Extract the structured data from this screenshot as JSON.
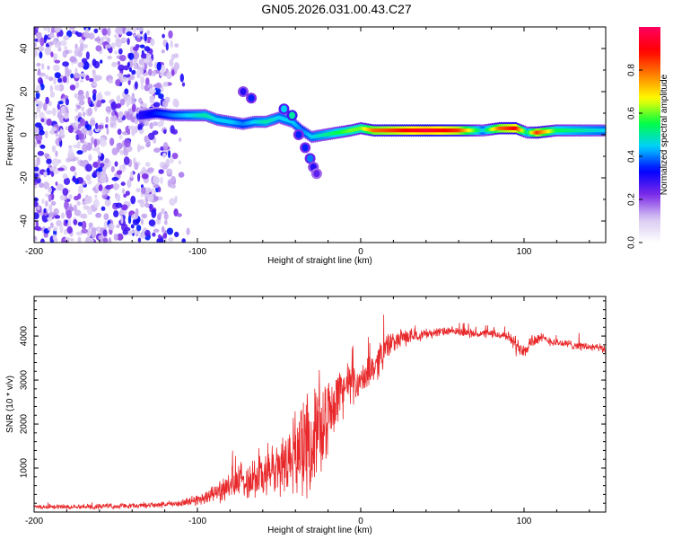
{
  "title": "GN05.2026.031.00.43.C27",
  "chart_data": [
    {
      "type": "heatmap",
      "name": "spectrogram",
      "xlabel": "Height of straight line (km)",
      "ylabel": "Frequency (Hz)",
      "xlim": [
        -200,
        150
      ],
      "ylim": [
        -50,
        50
      ],
      "xticks": [
        -200,
        -100,
        0,
        100
      ],
      "yticks": [
        -40,
        -20,
        0,
        20,
        40
      ],
      "colorbar": {
        "label": "Normalized spectral amplitude",
        "range": [
          0,
          1
        ],
        "ticks": [
          0.0,
          0.2,
          0.4,
          0.6,
          0.8
        ],
        "tick_labels": [
          "0.0",
          "0.2",
          "0.4",
          "0.6",
          "0.8"
        ],
        "colors": [
          "#ffffff",
          "#d8c8f2",
          "#7c2ae8",
          "#0000ff",
          "#00d0ff",
          "#00ff40",
          "#ffff00",
          "#ff8000",
          "#ff0000",
          "#ff0060"
        ]
      },
      "noise_region": {
        "x": [
          -200,
          -105
        ],
        "y": [
          -50,
          50
        ],
        "amplitude": 0.2
      },
      "trace": [
        {
          "x": -135,
          "y": 9,
          "a": 0.3
        },
        {
          "x": -125,
          "y": 10,
          "a": 0.35
        },
        {
          "x": -115,
          "y": 9,
          "a": 0.4
        },
        {
          "x": -105,
          "y": 9,
          "a": 0.45
        },
        {
          "x": -95,
          "y": 9,
          "a": 0.5
        },
        {
          "x": -88,
          "y": 7,
          "a": 0.45
        },
        {
          "x": -80,
          "y": 6,
          "a": 0.45
        },
        {
          "x": -72,
          "y": 5,
          "a": 0.4
        },
        {
          "x": -65,
          "y": 6,
          "a": 0.45
        },
        {
          "x": -58,
          "y": 6,
          "a": 0.5
        },
        {
          "x": -50,
          "y": 8,
          "a": 0.45
        },
        {
          "x": -42,
          "y": 6,
          "a": 0.45
        },
        {
          "x": -36,
          "y": 2,
          "a": 0.4
        },
        {
          "x": -30,
          "y": -1,
          "a": 0.45
        },
        {
          "x": -22,
          "y": 0,
          "a": 0.5
        },
        {
          "x": -14,
          "y": 1,
          "a": 0.55
        },
        {
          "x": -6,
          "y": 2,
          "a": 0.6
        },
        {
          "x": 0,
          "y": 3,
          "a": 0.6
        },
        {
          "x": 8,
          "y": 2,
          "a": 0.8
        },
        {
          "x": 20,
          "y": 2,
          "a": 0.85
        },
        {
          "x": 40,
          "y": 2,
          "a": 0.95
        },
        {
          "x": 60,
          "y": 2,
          "a": 0.85
        },
        {
          "x": 75,
          "y": 2,
          "a": 0.45
        },
        {
          "x": 85,
          "y": 3,
          "a": 0.8
        },
        {
          "x": 95,
          "y": 3,
          "a": 0.9
        },
        {
          "x": 102,
          "y": 1,
          "a": 0.5
        },
        {
          "x": 108,
          "y": 1,
          "a": 0.85
        },
        {
          "x": 120,
          "y": 2,
          "a": 0.55
        },
        {
          "x": 135,
          "y": 2,
          "a": 0.5
        },
        {
          "x": 150,
          "y": 2,
          "a": 0.45
        }
      ],
      "blobs": [
        {
          "x": -72,
          "y": 20,
          "a": 0.3
        },
        {
          "x": -67,
          "y": 17,
          "a": 0.35
        },
        {
          "x": -47,
          "y": 12,
          "a": 0.45
        },
        {
          "x": -42,
          "y": 9,
          "a": 0.5
        },
        {
          "x": -38,
          "y": 0,
          "a": 0.35
        },
        {
          "x": -34,
          "y": -6,
          "a": 0.35
        },
        {
          "x": -31,
          "y": -11,
          "a": 0.4
        },
        {
          "x": -29,
          "y": -15,
          "a": 0.3
        },
        {
          "x": -27,
          "y": -18,
          "a": 0.25
        }
      ]
    },
    {
      "type": "line",
      "name": "snr",
      "xlabel": "Height of straight line (km)",
      "ylabel": "SNR (10 * v/v)",
      "xlim": [
        -200,
        150
      ],
      "ylim": [
        0,
        4900
      ],
      "xticks": [
        -200,
        -100,
        0,
        100
      ],
      "yticks": [
        1000,
        2000,
        3000,
        4000
      ],
      "color": "#e8282a",
      "series": [
        {
          "name": "SNR",
          "x": [
            -200,
            -180,
            -160,
            -140,
            -120,
            -110,
            -100,
            -90,
            -80,
            -70,
            -60,
            -50,
            -40,
            -35,
            -30,
            -25,
            -20,
            -15,
            -10,
            -5,
            0,
            5,
            10,
            15,
            20,
            25,
            30,
            40,
            50,
            60,
            70,
            80,
            90,
            95,
            100,
            105,
            110,
            120,
            130,
            140,
            150
          ],
          "values": [
            120,
            120,
            130,
            140,
            170,
            200,
            280,
            420,
            600,
            750,
            850,
            1000,
            1350,
            1550,
            1650,
            1750,
            2200,
            2600,
            2850,
            2900,
            2950,
            3150,
            3400,
            3750,
            3850,
            3950,
            4000,
            4050,
            4100,
            4100,
            4050,
            4050,
            4000,
            3800,
            3700,
            3900,
            3950,
            3850,
            3800,
            3750,
            3700
          ],
          "noise": [
            60,
            60,
            70,
            70,
            80,
            100,
            150,
            250,
            400,
            550,
            700,
            800,
            1100,
            1300,
            1400,
            1300,
            900,
            800,
            700,
            500,
            450,
            400,
            500,
            400,
            300,
            250,
            200,
            150,
            120,
            120,
            120,
            120,
            120,
            250,
            250,
            200,
            150,
            120,
            120,
            120,
            120
          ]
        }
      ]
    }
  ]
}
